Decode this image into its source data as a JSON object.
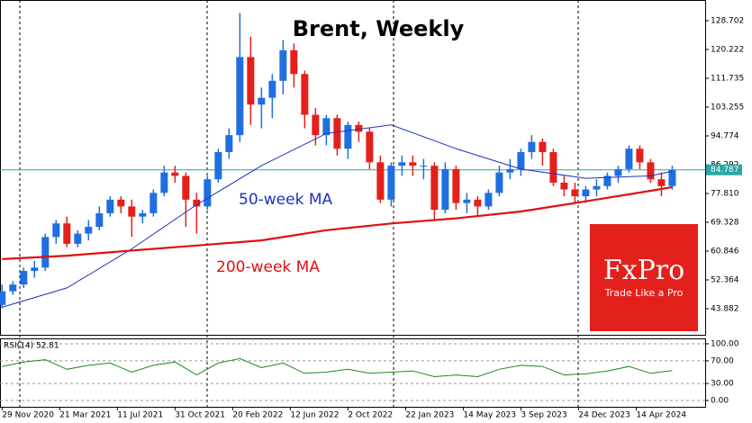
{
  "chart_data": [
    {
      "type": "candlestick",
      "title": "Brent, Weekly",
      "x": [
        "2020-11-29",
        "2020-12-20",
        "2021-01-10",
        "2021-01-31",
        "2021-02-21",
        "2021-03-14",
        "2021-04-04",
        "2021-04-25",
        "2021-05-16",
        "2021-06-06",
        "2021-06-27",
        "2021-07-18",
        "2021-08-08",
        "2021-08-29",
        "2021-09-19",
        "2021-10-10",
        "2021-10-31",
        "2021-11-21",
        "2021-12-12",
        "2022-01-02",
        "2022-01-23",
        "2022-02-13",
        "2022-03-06",
        "2022-03-27",
        "2022-04-17",
        "2022-05-08",
        "2022-05-29",
        "2022-06-19",
        "2022-07-10",
        "2022-07-31",
        "2022-08-21",
        "2022-09-11",
        "2022-10-02",
        "2022-10-23",
        "2022-11-13",
        "2022-12-04",
        "2022-12-25",
        "2023-01-15",
        "2023-02-05",
        "2023-02-26",
        "2023-03-19",
        "2023-04-09",
        "2023-04-30",
        "2023-05-21",
        "2023-06-11",
        "2023-07-02",
        "2023-07-23",
        "2023-08-13",
        "2023-09-03",
        "2023-09-24",
        "2023-10-15",
        "2023-11-05",
        "2023-11-26",
        "2023-12-17",
        "2024-01-07",
        "2024-01-28",
        "2024-02-18",
        "2024-03-10",
        "2024-03-31",
        "2024-04-21",
        "2024-05-12",
        "2024-06-02",
        "2024-06-23"
      ],
      "open": [
        45,
        49,
        51,
        55,
        56,
        65,
        69,
        63,
        66,
        68,
        72,
        76,
        74,
        71,
        72,
        78,
        84,
        83,
        76,
        74,
        82,
        90,
        95,
        118,
        104,
        106,
        111,
        120,
        113,
        101,
        95,
        100,
        91,
        98,
        96,
        87,
        76,
        86,
        87,
        86,
        86,
        73,
        85,
        75,
        76,
        74,
        78,
        84,
        85,
        90,
        93,
        90,
        81,
        79,
        77,
        79,
        80,
        83,
        85,
        91,
        87,
        82,
        80
      ],
      "high": [
        51,
        52,
        56,
        58,
        66,
        70,
        71,
        67,
        70,
        74,
        77,
        77,
        76,
        73,
        79,
        86,
        86,
        84,
        78,
        83,
        91,
        97,
        131,
        124,
        109,
        113,
        123,
        122,
        114,
        103,
        101,
        101,
        99,
        99,
        97,
        89,
        87,
        89,
        89,
        88,
        87,
        87,
        86,
        78,
        77,
        79,
        86,
        88,
        91,
        95,
        94,
        91,
        83,
        81,
        80,
        82,
        84,
        86,
        92,
        92,
        88,
        84,
        86
      ],
      "low": [
        44,
        48,
        50,
        53,
        55,
        63,
        62,
        62,
        64,
        67,
        71,
        72,
        65,
        69,
        71,
        77,
        81,
        68,
        66,
        73,
        81,
        88,
        93,
        98,
        97,
        100,
        107,
        109,
        97,
        92,
        92,
        89,
        88,
        93,
        85,
        75,
        74,
        83,
        83,
        82,
        70,
        72,
        73,
        72,
        71,
        73,
        77,
        82,
        83,
        88,
        86,
        80,
        77,
        75,
        75,
        77,
        79,
        81,
        84,
        85,
        81,
        77,
        79
      ],
      "close": [
        49,
        51,
        55,
        56,
        65,
        69,
        63,
        66,
        68,
        72,
        76,
        74,
        71,
        72,
        78,
        84,
        83,
        76,
        74,
        82,
        90,
        95,
        118,
        104,
        106,
        111,
        120,
        113,
        101,
        95,
        100,
        91,
        98,
        96,
        87,
        76,
        86,
        87,
        86,
        86,
        73,
        85,
        75,
        76,
        74,
        78,
        84,
        85,
        90,
        93,
        90,
        81,
        79,
        77,
        79,
        80,
        83,
        85,
        91,
        87,
        82,
        80,
        84.787
      ],
      "up_color": "#1f6fe0",
      "down_color": "#e4201c",
      "price_line_color": "#2aa7a7",
      "series": [
        {
          "name": "50-week MA",
          "color": "#2030c0",
          "x": [
            "2020-11-29",
            "2021-04-04",
            "2021-08-08",
            "2021-12-12",
            "2022-04-17",
            "2022-08-21",
            "2022-12-25",
            "2023-04-30",
            "2023-09-03",
            "2024-01-07",
            "2024-05-12",
            "2024-06-23"
          ],
          "values": [
            44.3,
            50,
            61.5,
            74.5,
            86,
            95.5,
            98,
            91,
            85,
            82.3,
            83,
            84.4
          ]
        },
        {
          "name": "200-week MA",
          "color": "#e01010",
          "x": [
            "2020-11-29",
            "2021-04-04",
            "2021-08-08",
            "2021-12-12",
            "2022-04-17",
            "2022-08-21",
            "2022-12-25",
            "2023-04-30",
            "2023-09-03",
            "2024-01-07",
            "2024-05-12",
            "2024-06-23"
          ],
          "values": [
            58.5,
            59.5,
            61,
            62.5,
            64,
            67,
            69,
            70.5,
            72.5,
            75.5,
            78.6,
            79.7
          ]
        }
      ],
      "xlim": [
        "2020-11-25",
        "2024-08-26"
      ],
      "xticks": [
        {
          "value": "2020-11-29",
          "label": "29 Nov 2020"
        },
        {
          "value": "2021-03-21",
          "label": "21 Mar 2021"
        },
        {
          "value": "2021-07-11",
          "label": "11 Jul 2021"
        },
        {
          "value": "2021-10-31",
          "label": "31 Oct 2021"
        },
        {
          "value": "2022-02-20",
          "label": "20 Feb 2022"
        },
        {
          "value": "2022-06-12",
          "label": "12 Jun 2022"
        },
        {
          "value": "2022-10-02",
          "label": "2 Oct 2022"
        },
        {
          "value": "2023-01-22",
          "label": "22 Jan 2023"
        },
        {
          "value": "2023-05-14",
          "label": "14 May 2023"
        },
        {
          "value": "2023-09-03",
          "label": "3 Sep 2023"
        },
        {
          "value": "2023-12-24",
          "label": "24 Dec 2023"
        },
        {
          "value": "2024-04-14",
          "label": "14 Apr 2024"
        }
      ],
      "ylim": [
        36.2,
        134.8
      ],
      "yticks": [
        128.702,
        120.222,
        111.735,
        103.255,
        94.774,
        {
          "value": 86.292,
          "label": "86.292"
        },
        {
          "value": 77.81,
          "label": "77.810"
        },
        69.328,
        60.846,
        52.364,
        43.882
      ]
    },
    {
      "type": "line",
      "title": "RSI(14) 52.81",
      "series": [
        {
          "color": "#1a8a1a",
          "x": [
            "2020-11-29",
            "2021-01-10",
            "2021-02-21",
            "2021-04-04",
            "2021-05-16",
            "2021-06-27",
            "2021-08-08",
            "2021-09-19",
            "2021-10-31",
            "2021-12-12",
            "2022-01-23",
            "2022-03-06",
            "2022-04-17",
            "2022-05-29",
            "2022-07-10",
            "2022-08-21",
            "2022-10-02",
            "2022-11-13",
            "2022-12-25",
            "2023-02-05",
            "2023-03-19",
            "2023-04-30",
            "2023-06-11",
            "2023-07-23",
            "2023-09-03",
            "2023-10-15",
            "2023-11-26",
            "2024-01-07",
            "2024-02-18",
            "2024-03-31",
            "2024-05-12",
            "2024-06-23"
          ],
          "values": [
            60,
            68,
            72,
            55,
            62,
            66,
            50,
            62,
            68,
            45,
            66,
            74,
            58,
            66,
            48,
            50,
            55,
            48,
            50,
            52,
            42,
            45,
            42,
            55,
            62,
            60,
            45,
            47,
            52,
            60,
            48,
            52.81
          ]
        }
      ],
      "ylim": [
        -11.1,
        109.5
      ],
      "yticks": [
        {
          "value": 100,
          "label": "100.00"
        },
        {
          "value": 70,
          "label": "70.00"
        },
        {
          "value": 30,
          "label": "30.00"
        },
        {
          "value": 0,
          "label": "0.00"
        }
      ]
    }
  ],
  "logo": {
    "brand": "FxPro",
    "tagline": "Trade Like a Pro"
  }
}
